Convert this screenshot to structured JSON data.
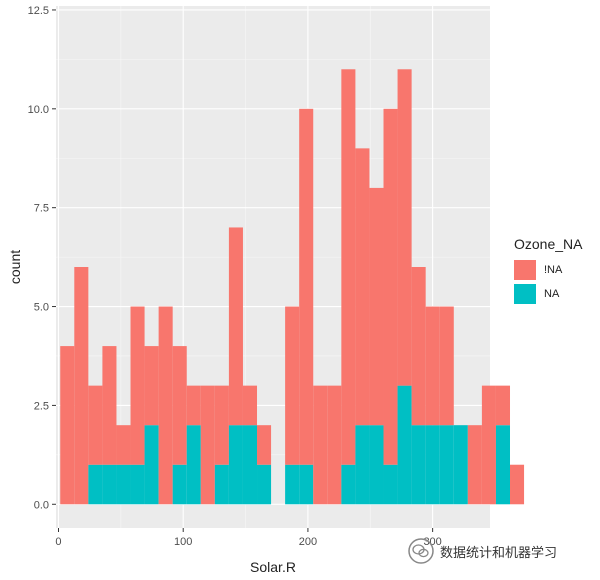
{
  "chart_data": {
    "type": "bar",
    "stacked": true,
    "xlabel": "Solar.R",
    "ylabel": "count",
    "xlim": [
      -2,
      346
    ],
    "ylim": [
      -0.6,
      12.6
    ],
    "xticks": [
      0,
      100,
      200,
      300
    ],
    "yticks": [
      0.0,
      2.5,
      5.0,
      7.5,
      10.0,
      12.5
    ],
    "ytick_labels": [
      "0.0",
      "2.5",
      "5.0",
      "7.5",
      "10.0",
      "12.5"
    ],
    "bin_width": 11.27,
    "bins_start": 1.4,
    "series": [
      {
        "name": "NA",
        "color": "#00BFC4",
        "values": [
          0,
          0,
          1,
          1,
          1,
          1,
          2,
          0,
          1,
          2,
          0,
          1,
          2,
          2,
          1,
          0,
          1,
          1,
          0,
          0,
          1,
          2,
          2,
          1,
          3,
          2,
          2,
          2,
          2,
          0,
          0,
          2,
          0,
          0,
          0,
          0
        ]
      },
      {
        "name": "!NA",
        "color": "#F8766D",
        "values": [
          4,
          6,
          2,
          3,
          1,
          4,
          2,
          5,
          3,
          1,
          3,
          2,
          5,
          1,
          1,
          0,
          4,
          9,
          3,
          3,
          10,
          7,
          6,
          9,
          8,
          4,
          3,
          3,
          0,
          2,
          3,
          1,
          1,
          0,
          0,
          0
        ]
      }
    ],
    "legend": {
      "title": "Ozone_NA",
      "position": "right",
      "labels": [
        "!NA",
        "NA"
      ]
    },
    "grid": true,
    "panel_background": "#EBEBEB"
  },
  "watermark": {
    "text": "数据统计和机器学习",
    "icon": "wechat-icon"
  }
}
